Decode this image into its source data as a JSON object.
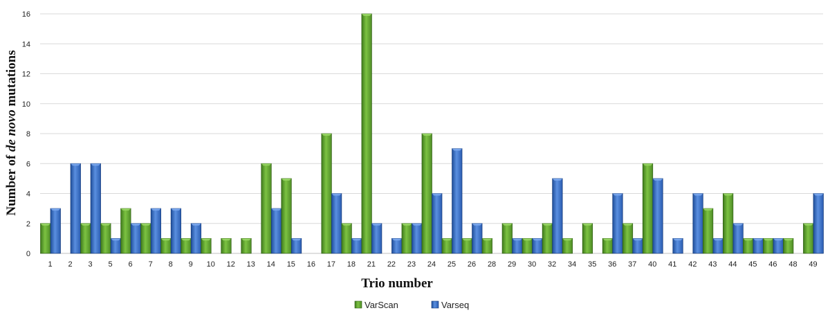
{
  "chart_data": {
    "type": "bar",
    "title": "",
    "ylabel_parts": [
      "Number of ",
      "de novo",
      " mutations"
    ],
    "xlabel": "Trio number",
    "ylim": [
      0,
      16
    ],
    "yticks": [
      "0",
      "2",
      "4",
      "6",
      "8",
      "10",
      "12",
      "14",
      "16"
    ],
    "grid": true,
    "legend_position": "bottom-center",
    "categories": [
      "1",
      "2",
      "3",
      "5",
      "6",
      "7",
      "8",
      "9",
      "10",
      "12",
      "13",
      "14",
      "15",
      "16",
      "17",
      "18",
      "21",
      "22",
      "23",
      "24",
      "25",
      "26",
      "28",
      "29",
      "30",
      "32",
      "34",
      "35",
      "36",
      "37",
      "40",
      "41",
      "42",
      "43",
      "44",
      "45",
      "46",
      "48",
      "49"
    ],
    "series": [
      {
        "name": "VarScan",
        "color": "#6aaa35",
        "values": [
          2,
          0,
          2,
          2,
          3,
          2,
          1,
          1,
          1,
          1,
          1,
          6,
          5,
          0,
          8,
          2,
          16,
          0,
          2,
          8,
          1,
          1,
          1,
          2,
          1,
          2,
          1,
          2,
          1,
          2,
          6,
          0,
          0,
          3,
          4,
          1,
          1,
          1,
          2
        ]
      },
      {
        "name": "Varseq",
        "color": "#3a6fc4",
        "values": [
          3,
          6,
          6,
          1,
          2,
          3,
          3,
          2,
          0,
          0,
          0,
          3,
          1,
          0,
          4,
          1,
          2,
          1,
          2,
          4,
          7,
          2,
          0,
          1,
          1,
          5,
          0,
          0,
          4,
          1,
          5,
          1,
          4,
          1,
          2,
          1,
          1,
          0,
          4
        ]
      }
    ]
  }
}
